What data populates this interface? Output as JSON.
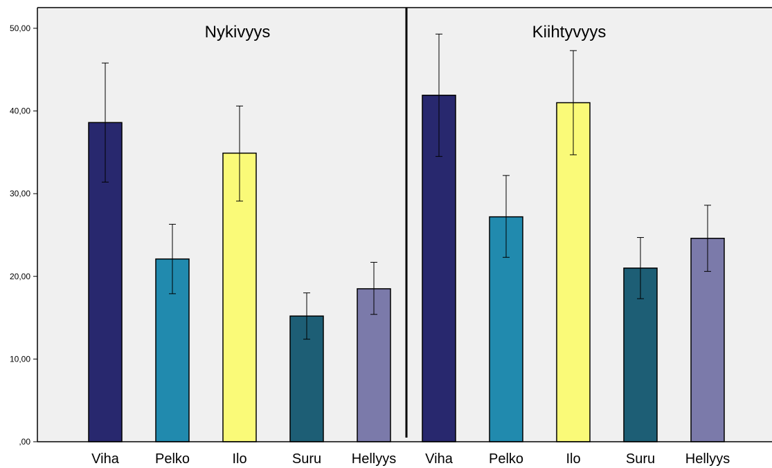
{
  "chart_data": {
    "type": "bar",
    "ylim": [
      0,
      52.5
    ],
    "yticks": [
      0,
      10,
      20,
      30,
      40,
      50
    ],
    "ytick_labels": [
      ",00",
      "10,00",
      "20,00",
      "30,00",
      "40,00",
      "50,00"
    ],
    "grid": false,
    "legend": "none",
    "panels": [
      {
        "title": "Nykivyys",
        "categories": [
          "Viha",
          "Pelko",
          "Ilo",
          "Suru",
          "Hellyys"
        ],
        "values": [
          38.6,
          22.1,
          34.9,
          15.2,
          18.5
        ],
        "error_low": [
          31.4,
          17.9,
          29.1,
          12.4,
          15.4
        ],
        "error_high": [
          45.8,
          26.3,
          40.6,
          18.0,
          21.7
        ]
      },
      {
        "title": "Kiihtyvyys",
        "categories": [
          "Viha",
          "Pelko",
          "Ilo",
          "Suru",
          "Hellyys"
        ],
        "values": [
          41.9,
          27.2,
          41.0,
          21.0,
          24.6
        ],
        "error_low": [
          34.5,
          22.3,
          34.7,
          17.3,
          20.6
        ],
        "error_high": [
          49.3,
          32.2,
          47.3,
          24.7,
          28.6
        ]
      }
    ],
    "colors": [
      "#28286e",
      "#218aae",
      "#fafa78",
      "#1d5e75",
      "#7b7aaa"
    ],
    "plot_background": "#f0f0f0"
  }
}
